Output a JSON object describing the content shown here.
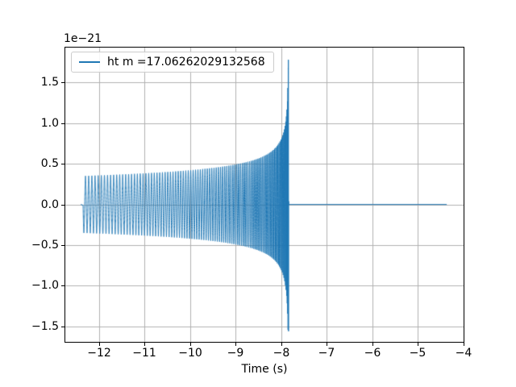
{
  "chart_data": {
    "type": "line",
    "title": "",
    "xlabel": "Time (s)",
    "ylabel": "",
    "y_scale_offset_label": "1e−21",
    "y_unit_multiplier": 1e-21,
    "grid": true,
    "legend": {
      "position": "upper left",
      "entries": [
        {
          "label": "ht m =17.06262029132568",
          "color": "#1f77b4"
        }
      ]
    },
    "xlim": [
      -12.74,
      -4.0
    ],
    "ylim": [
      -1.69,
      1.93
    ],
    "xticks": [
      -12,
      -11,
      -10,
      -9,
      -8,
      -7,
      -6,
      -5,
      -4
    ],
    "xtick_labels": [
      "−12",
      "−11",
      "−10",
      "−9",
      "−8",
      "−7",
      "−6",
      "−5",
      "−4"
    ],
    "yticks": [
      1.5,
      1.0,
      0.5,
      0.0,
      -0.5,
      -1.0,
      -1.5
    ],
    "ytick_labels": [
      "1.5",
      "1.0",
      "0.5",
      "0.0",
      "−0.5",
      "−1.0",
      "−1.5"
    ],
    "series": [
      {
        "name": "ht m =17.06262029132568",
        "color": "#1f77b4",
        "model": "compact_binary_chirp",
        "t_start_s": -12.35,
        "t_merger_s": -7.84,
        "t_end_s": -4.37,
        "start_amplitude": 0.35,
        "peak_amplitude": 1.78,
        "trough_amplitude": -1.56,
        "post_merger_value": 0.0,
        "start_frequency_hz": 14.1,
        "amplitude_exponent": -0.25,
        "frequency_exponent": -0.375,
        "envelope_samples": {
          "t": [
            -12.35,
            -12.0,
            -11.0,
            -10.0,
            -9.0,
            -8.5,
            -8.2,
            -8.0,
            -7.9,
            -7.86,
            -7.84
          ],
          "amplitude": [
            0.35,
            0.36,
            0.38,
            0.42,
            0.49,
            0.57,
            0.66,
            0.83,
            1.03,
            1.3,
            1.78
          ]
        }
      }
    ],
    "colors": {
      "line": "#1f77b4",
      "grid": "#b0b0b0",
      "spine": "#000000",
      "legend_border": "#cccccc",
      "background": "#ffffff"
    }
  }
}
